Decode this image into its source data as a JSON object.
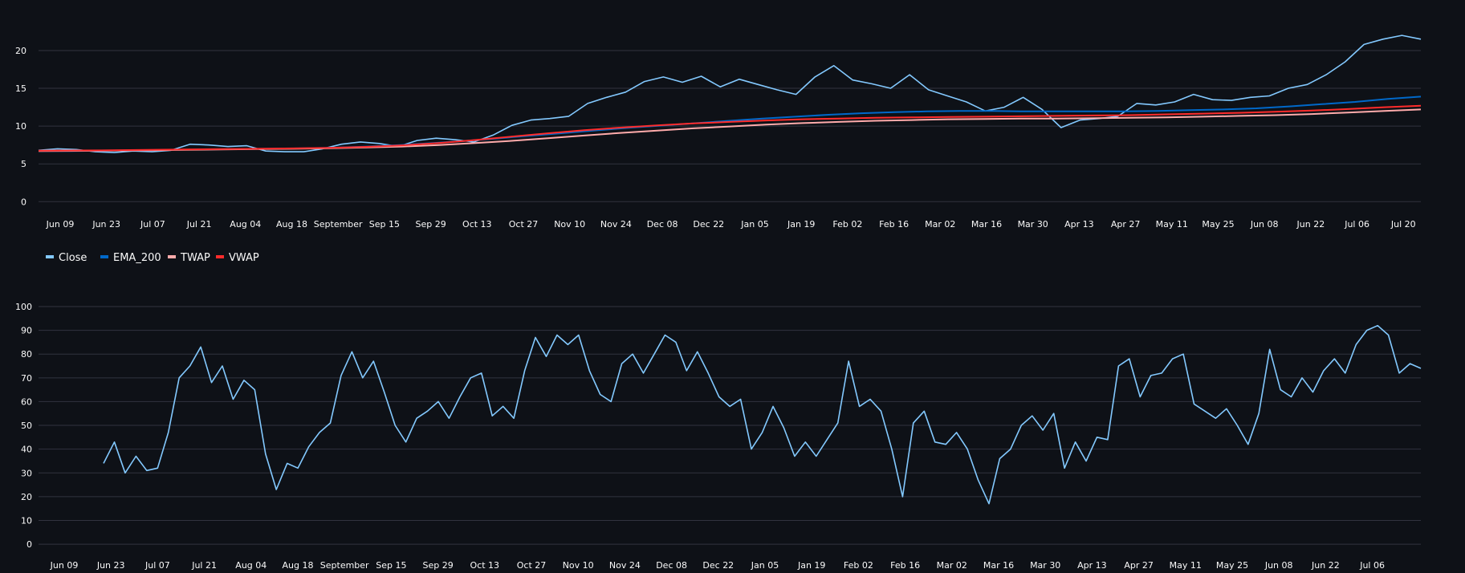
{
  "chart_data": [
    {
      "type": "line",
      "name": "price-chart",
      "x_tick_labels": [
        "Jun 09",
        "Jun 23",
        "Jul 07",
        "Jul 21",
        "Aug 04",
        "Aug 18",
        "September",
        "Sep 15",
        "Sep 29",
        "Oct 13",
        "Oct 27",
        "Nov 10",
        "Nov 24",
        "Dec 08",
        "Dec 22",
        "Jan 05",
        "Jan 19",
        "Feb 02",
        "Feb 16",
        "Mar 02",
        "Mar 16",
        "Mar 30",
        "Apr 13",
        "Apr 27",
        "May 11",
        "May 25",
        "Jun 08",
        "Jun 22",
        "Jul 06",
        "Jul 20"
      ],
      "y_ticks": [
        0,
        5,
        10,
        15,
        20
      ],
      "ylim": [
        -0.5,
        23.5
      ],
      "grid": true,
      "legend_position": "bottom-left",
      "series": [
        {
          "name": "Close",
          "color": "#83c9ff",
          "values": [
            6.8,
            7.0,
            6.9,
            6.6,
            6.5,
            6.7,
            6.6,
            6.8,
            7.6,
            7.5,
            7.3,
            7.4,
            6.7,
            6.6,
            6.6,
            7.0,
            7.6,
            7.9,
            7.7,
            7.3,
            8.1,
            8.4,
            8.2,
            7.9,
            8.8,
            10.1,
            10.8,
            11.0,
            11.3,
            13.0,
            13.8,
            14.5,
            15.9,
            16.5,
            15.8,
            16.6,
            15.2,
            16.2,
            15.5,
            14.8,
            14.2,
            16.5,
            18.0,
            16.1,
            15.6,
            15.0,
            16.8,
            14.8,
            14.0,
            13.2,
            12.0,
            12.5,
            13.8,
            12.2,
            9.8,
            10.8,
            11.0,
            11.3,
            13.0,
            12.8,
            13.2,
            14.2,
            13.5,
            13.4,
            13.8,
            14.0,
            15.0,
            15.5,
            16.8,
            18.5,
            20.8,
            21.5,
            22.0,
            21.5
          ]
        },
        {
          "name": "EMA_200",
          "color": "#0068c9",
          "values": [
            6.7,
            6.7,
            6.75,
            6.8,
            6.85,
            6.9,
            6.95,
            7.0,
            7.05,
            7.15,
            7.3,
            7.5,
            7.75,
            8.05,
            8.4,
            8.75,
            9.1,
            9.45,
            9.8,
            10.1,
            10.4,
            10.7,
            11.0,
            11.25,
            11.5,
            11.7,
            11.85,
            11.95,
            12.0,
            12.0,
            11.95,
            11.95,
            11.95,
            11.95,
            12.0,
            12.1,
            12.2,
            12.35,
            12.6,
            12.9,
            13.2,
            13.6,
            13.9
          ]
        },
        {
          "name": "TWAP",
          "color": "#ffabab",
          "values": [
            6.7,
            6.72,
            6.76,
            6.8,
            6.85,
            6.9,
            6.95,
            7.0,
            7.07,
            7.18,
            7.3,
            7.5,
            7.75,
            8.05,
            8.4,
            8.75,
            9.1,
            9.4,
            9.7,
            9.95,
            10.2,
            10.4,
            10.55,
            10.7,
            10.8,
            10.9,
            10.95,
            11.0,
            11.0,
            11.05,
            11.1,
            11.15,
            11.25,
            11.35,
            11.45,
            11.6,
            11.8,
            12.0,
            12.2
          ]
        },
        {
          "name": "VWAP",
          "color": "#ff2b2b",
          "values": [
            6.75,
            6.77,
            6.8,
            6.85,
            6.9,
            6.95,
            7.0,
            7.05,
            7.12,
            7.25,
            7.45,
            7.75,
            8.15,
            8.6,
            9.05,
            9.45,
            9.8,
            10.1,
            10.35,
            10.55,
            10.75,
            10.9,
            11.0,
            11.1,
            11.15,
            11.2,
            11.25,
            11.3,
            11.35,
            11.4,
            11.45,
            11.55,
            11.65,
            11.75,
            11.9,
            12.05,
            12.25,
            12.5,
            12.7
          ]
        }
      ]
    },
    {
      "type": "line",
      "name": "indicator-chart",
      "x_tick_labels": [
        "Jun 09",
        "Jun 23",
        "Jul 07",
        "Jul 21",
        "Aug 04",
        "Aug 18",
        "September",
        "Sep 15",
        "Sep 29",
        "Oct 13",
        "Oct 27",
        "Nov 10",
        "Nov 24",
        "Dec 08",
        "Dec 22",
        "Jan 05",
        "Jan 19",
        "Feb 02",
        "Feb 16",
        "Mar 02",
        "Mar 16",
        "Mar 30",
        "Apr 13",
        "Apr 27",
        "May 11",
        "May 25",
        "Jun 08",
        "Jun 22",
        "Jul 06"
      ],
      "y_ticks": [
        0,
        10,
        20,
        30,
        40,
        50,
        60,
        70,
        80,
        90,
        100
      ],
      "ylim": [
        -2,
        100
      ],
      "grid": true,
      "series": [
        {
          "name": "Close",
          "color": "#83c9ff",
          "values": [
            34,
            43,
            30,
            37,
            31,
            32,
            47,
            70,
            75,
            83,
            68,
            75,
            61,
            69,
            65,
            38,
            23,
            34,
            32,
            41,
            47,
            51,
            71,
            81,
            70,
            77,
            64,
            50,
            43,
            53,
            56,
            60,
            53,
            62,
            70,
            72,
            54,
            58,
            53,
            73,
            87,
            79,
            88,
            84,
            88,
            73,
            63,
            60,
            76,
            80,
            72,
            80,
            88,
            85,
            73,
            81,
            72,
            62,
            58,
            61,
            40,
            47,
            58,
            49,
            37,
            43,
            37,
            44,
            51,
            77,
            58,
            61,
            56,
            40,
            20,
            51,
            56,
            43,
            42,
            47,
            40,
            27,
            17,
            36,
            40,
            50,
            54,
            48,
            55,
            32,
            43,
            35,
            45,
            44,
            75,
            78,
            62,
            71,
            72,
            78,
            80,
            59,
            56,
            53,
            57,
            50,
            42,
            55,
            82,
            65,
            62,
            70,
            64,
            73,
            78,
            72,
            84,
            90,
            92,
            88,
            72,
            76,
            74
          ]
        }
      ]
    }
  ],
  "legend": [
    {
      "label": "Close",
      "color": "#83c9ff"
    },
    {
      "label": "EMA_200",
      "color": "#0068c9"
    },
    {
      "label": "TWAP",
      "color": "#ffabab"
    },
    {
      "label": "VWAP",
      "color": "#ff2b2b"
    }
  ]
}
